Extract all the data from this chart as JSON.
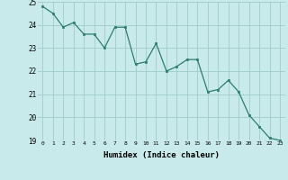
{
  "x": [
    0,
    1,
    2,
    3,
    4,
    5,
    6,
    7,
    8,
    9,
    10,
    11,
    12,
    13,
    14,
    15,
    16,
    17,
    18,
    19,
    20,
    21,
    22,
    23
  ],
  "y": [
    24.8,
    24.5,
    23.9,
    24.1,
    23.6,
    23.6,
    23.0,
    23.9,
    23.9,
    22.3,
    22.4,
    23.2,
    22.0,
    22.2,
    22.5,
    22.5,
    21.1,
    21.2,
    21.6,
    21.1,
    20.1,
    19.6,
    19.1,
    19.0
  ],
  "line_color": "#2d7d6e",
  "marker_color": "#2d7d6e",
  "bg_color": "#c8eaea",
  "grid_color": "#a0cccc",
  "xlabel": "Humidex (Indice chaleur)",
  "ylim": [
    19,
    25
  ],
  "xlim": [
    -0.5,
    23.5
  ],
  "yticks": [
    19,
    20,
    21,
    22,
    23,
    24,
    25
  ],
  "xticks": [
    0,
    1,
    2,
    3,
    4,
    5,
    6,
    7,
    8,
    9,
    10,
    11,
    12,
    13,
    14,
    15,
    16,
    17,
    18,
    19,
    20,
    21,
    22,
    23
  ]
}
